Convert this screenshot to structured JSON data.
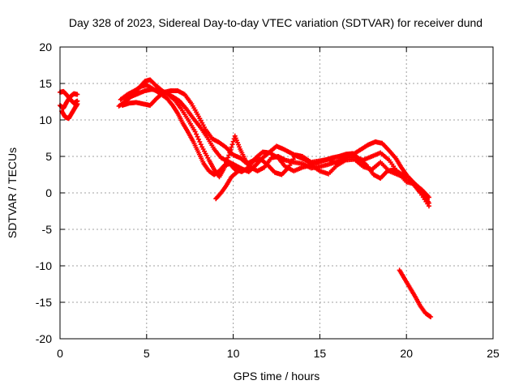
{
  "chart_data": {
    "type": "scatter",
    "title": "Day 328 of 2023, Sidereal Day-to-day VTEC variation (SDTVAR) for receiver dund",
    "xlabel": "GPS time / hours",
    "ylabel": "SDTVAR / TECUs",
    "xlim": [
      0,
      25
    ],
    "ylim": [
      -20,
      20
    ],
    "xticks": [
      0,
      5,
      10,
      15,
      20,
      25
    ],
    "yticks": [
      -20,
      -15,
      -10,
      -5,
      0,
      5,
      10,
      15,
      20
    ],
    "grid": true,
    "marker": "+",
    "series": [
      {
        "name": "SDTVAR",
        "color": "#ff0000",
        "tracks": [
          [
            [
              0.0,
              12.0
            ],
            [
              0.2,
              11.6
            ],
            [
              0.4,
              12.5
            ],
            [
              0.6,
              13.2
            ],
            [
              0.8,
              13.6
            ],
            [
              1.0,
              13.5
            ]
          ],
          [
            [
              0.0,
              13.8
            ],
            [
              0.2,
              13.9
            ],
            [
              0.4,
              13.4
            ],
            [
              0.6,
              12.8
            ],
            [
              0.8,
              12.3
            ],
            [
              1.0,
              12.6
            ]
          ],
          [
            [
              0.1,
              11.2
            ],
            [
              0.3,
              10.4
            ],
            [
              0.5,
              10.2
            ],
            [
              0.7,
              11.0
            ],
            [
              0.9,
              11.8
            ],
            [
              1.0,
              12.2
            ]
          ],
          [
            [
              3.4,
              11.9
            ],
            [
              3.8,
              12.6
            ],
            [
              4.2,
              13.4
            ],
            [
              4.6,
              14.5
            ],
            [
              4.9,
              15.3
            ],
            [
              5.2,
              15.5
            ],
            [
              5.5,
              14.8
            ],
            [
              5.9,
              14.0
            ],
            [
              6.3,
              13.4
            ],
            [
              6.6,
              12.8
            ],
            [
              7.0,
              11.5
            ],
            [
              7.4,
              10.0
            ],
            [
              7.8,
              8.4
            ],
            [
              8.2,
              6.3
            ],
            [
              8.6,
              4.5
            ],
            [
              8.9,
              3.2
            ],
            [
              9.2,
              2.2
            ],
            [
              9.5,
              3.5
            ],
            [
              9.8,
              5.5
            ],
            [
              10.1,
              7.8
            ],
            [
              10.4,
              6.0
            ],
            [
              10.7,
              4.5
            ],
            [
              11.0,
              3.5
            ],
            [
              11.4,
              3.0
            ],
            [
              11.8,
              3.5
            ],
            [
              12.2,
              4.8
            ],
            [
              12.6,
              5.0
            ],
            [
              13.0,
              4.5
            ],
            [
              13.5,
              4.2
            ],
            [
              14.0,
              4.0
            ],
            [
              14.5,
              3.4
            ],
            [
              15.0,
              3.6
            ],
            [
              15.5,
              3.9
            ],
            [
              16.0,
              4.3
            ],
            [
              16.5,
              4.8
            ],
            [
              17.0,
              4.9
            ],
            [
              17.5,
              4.5
            ],
            [
              18.0,
              5.0
            ],
            [
              18.5,
              5.5
            ],
            [
              19.0,
              4.5
            ],
            [
              19.5,
              2.8
            ],
            [
              20.0,
              1.5
            ],
            [
              20.5,
              1.2
            ],
            [
              20.9,
              0.2
            ],
            [
              21.2,
              -0.8
            ]
          ],
          [
            [
              3.5,
              12.8
            ],
            [
              3.9,
              13.5
            ],
            [
              4.3,
              14.0
            ],
            [
              4.7,
              14.6
            ],
            [
              5.0,
              14.8
            ],
            [
              5.4,
              14.2
            ],
            [
              5.8,
              13.6
            ],
            [
              6.2,
              12.9
            ],
            [
              6.5,
              12.0
            ],
            [
              6.8,
              10.9
            ],
            [
              7.1,
              9.5
            ],
            [
              7.4,
              8.3
            ],
            [
              7.7,
              7.0
            ],
            [
              8.0,
              5.5
            ],
            [
              8.3,
              4.0
            ],
            [
              8.6,
              3.0
            ],
            [
              8.9,
              2.5
            ],
            [
              9.2,
              3.0
            ],
            [
              9.5,
              3.8
            ],
            [
              9.8,
              4.0
            ],
            [
              10.1,
              3.2
            ],
            [
              10.5,
              2.9
            ],
            [
              10.9,
              3.5
            ],
            [
              11.3,
              4.8
            ],
            [
              11.7,
              5.6
            ],
            [
              12.1,
              5.5
            ],
            [
              12.6,
              4.8
            ],
            [
              13.0,
              3.6
            ],
            [
              13.5,
              3.0
            ],
            [
              14.0,
              3.5
            ],
            [
              14.5,
              3.8
            ],
            [
              15.0,
              3.0
            ],
            [
              15.5,
              2.6
            ],
            [
              16.0,
              3.8
            ],
            [
              16.5,
              4.5
            ],
            [
              17.0,
              4.6
            ],
            [
              17.5,
              3.6
            ],
            [
              18.0,
              3.2
            ],
            [
              18.5,
              4.2
            ],
            [
              19.0,
              3.0
            ],
            [
              19.5,
              2.5
            ],
            [
              20.0,
              2.0
            ],
            [
              20.6,
              0.8
            ],
            [
              21.0,
              -0.2
            ],
            [
              21.3,
              -1.4
            ]
          ],
          [
            [
              3.6,
              12.0
            ],
            [
              4.0,
              12.3
            ],
            [
              4.4,
              12.4
            ],
            [
              4.8,
              12.2
            ],
            [
              5.2,
              12.0
            ],
            [
              5.6,
              13.0
            ],
            [
              6.0,
              13.8
            ],
            [
              6.4,
              14.0
            ],
            [
              6.8,
              14.0
            ],
            [
              7.2,
              13.5
            ],
            [
              7.6,
              12.2
            ],
            [
              8.0,
              10.5
            ],
            [
              8.4,
              8.7
            ],
            [
              8.8,
              7.4
            ],
            [
              9.2,
              6.9
            ],
            [
              9.6,
              6.2
            ],
            [
              10.0,
              5.2
            ],
            [
              10.4,
              4.8
            ],
            [
              10.8,
              4.0
            ],
            [
              11.2,
              4.5
            ],
            [
              11.6,
              4.6
            ],
            [
              12.0,
              3.8
            ],
            [
              12.4,
              2.8
            ],
            [
              12.8,
              2.5
            ],
            [
              13.2,
              3.5
            ],
            [
              13.6,
              5.2
            ],
            [
              14.0,
              5.0
            ],
            [
              14.5,
              4.2
            ],
            [
              15.0,
              4.4
            ],
            [
              15.5,
              4.6
            ],
            [
              16.0,
              4.0
            ],
            [
              16.5,
              5.0
            ],
            [
              17.0,
              5.4
            ],
            [
              17.4,
              6.0
            ],
            [
              17.8,
              6.6
            ],
            [
              18.2,
              7.0
            ],
            [
              18.6,
              6.8
            ],
            [
              19.0,
              5.8
            ],
            [
              19.4,
              4.7
            ],
            [
              19.7,
              3.5
            ],
            [
              20.0,
              2.5
            ],
            [
              20.4,
              1.2
            ],
            [
              20.8,
              0.0
            ],
            [
              21.3,
              -1.8
            ]
          ],
          [
            [
              3.7,
              13.0
            ],
            [
              4.1,
              13.2
            ],
            [
              4.5,
              13.6
            ],
            [
              4.9,
              14.0
            ],
            [
              5.3,
              14.2
            ],
            [
              5.7,
              14.0
            ],
            [
              6.1,
              13.7
            ],
            [
              6.5,
              13.2
            ],
            [
              6.9,
              12.6
            ],
            [
              7.3,
              11.5
            ],
            [
              7.7,
              10.2
            ],
            [
              8.1,
              9.0
            ],
            [
              8.5,
              7.6
            ],
            [
              8.9,
              6.0
            ],
            [
              9.3,
              4.8
            ],
            [
              9.7,
              4.3
            ],
            [
              10.1,
              3.8
            ],
            [
              10.5,
              3.3
            ],
            [
              10.9,
              2.9
            ],
            [
              11.3,
              3.8
            ],
            [
              11.7,
              4.8
            ],
            [
              12.1,
              5.6
            ],
            [
              12.5,
              6.4
            ],
            [
              12.9,
              6.0
            ],
            [
              13.3,
              5.5
            ],
            [
              13.7,
              5.0
            ],
            [
              14.1,
              4.6
            ],
            [
              14.5,
              4.0
            ],
            [
              14.9,
              4.2
            ],
            [
              15.3,
              4.5
            ],
            [
              15.7,
              4.8
            ],
            [
              16.1,
              5.0
            ],
            [
              16.5,
              5.3
            ],
            [
              16.9,
              5.4
            ],
            [
              17.3,
              4.6
            ],
            [
              17.7,
              3.8
            ],
            [
              18.1,
              2.5
            ],
            [
              18.5,
              2.0
            ],
            [
              18.9,
              3.0
            ],
            [
              19.3,
              3.2
            ],
            [
              19.7,
              2.6
            ],
            [
              20.1,
              2.2
            ],
            [
              20.5,
              1.2
            ],
            [
              20.9,
              0.4
            ],
            [
              21.3,
              -0.6
            ]
          ],
          [
            [
              9.0,
              -0.8
            ],
            [
              9.3,
              0.0
            ],
            [
              9.6,
              1.0
            ],
            [
              9.9,
              2.2
            ],
            [
              10.3,
              3.0
            ]
          ],
          [
            [
              19.6,
              -10.6
            ],
            [
              19.9,
              -11.8
            ],
            [
              20.2,
              -13.0
            ],
            [
              20.5,
              -14.2
            ],
            [
              20.8,
              -15.5
            ],
            [
              21.1,
              -16.5
            ],
            [
              21.4,
              -17.0
            ]
          ]
        ]
      }
    ]
  }
}
